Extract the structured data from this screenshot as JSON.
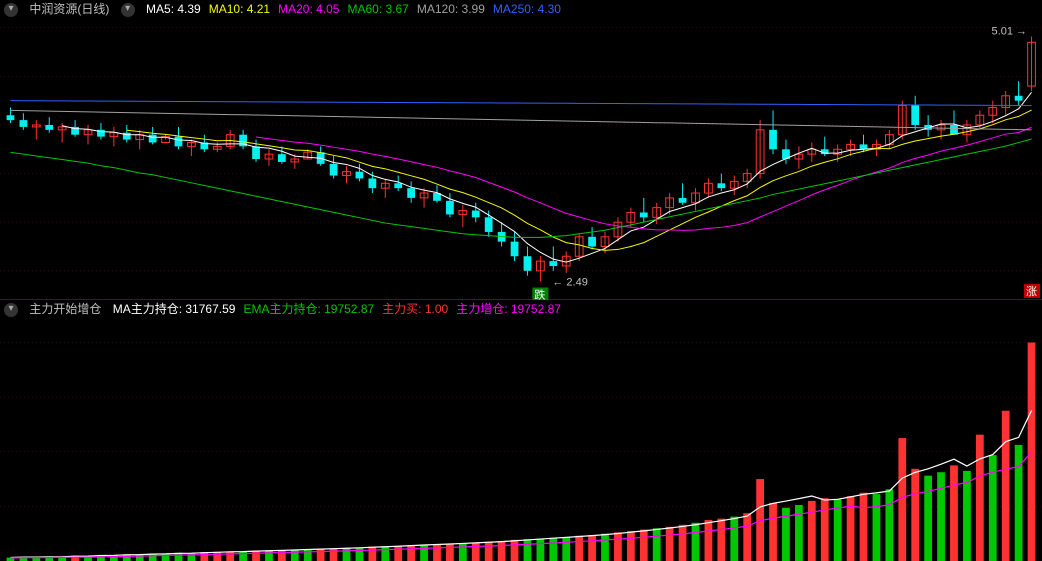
{
  "colors": {
    "background": "#000000",
    "grid": "#800000",
    "text_default": "#c0c0c0",
    "candle_up": "#ff3232",
    "candle_down": "#00f0f0",
    "ma5": "#ffffff",
    "ma10": "#f8f800",
    "ma20": "#ff00ff",
    "ma60": "#00c800",
    "ma120": "#a0a0a0",
    "ma250": "#3060ff",
    "vol_up": "#ff3232",
    "vol_down": "#00c800",
    "vol_line": "#ffffff",
    "vol_line2": "#ff00ff"
  },
  "top": {
    "title": "中润资源(日线)",
    "ma_labels": [
      {
        "label": "MA5:",
        "value": "4.39",
        "color": "#ffffff"
      },
      {
        "label": "MA10:",
        "value": "4.21",
        "color": "#f8f800"
      },
      {
        "label": "MA20:",
        "value": "4.05",
        "color": "#ff00ff"
      },
      {
        "label": "MA60:",
        "value": "3.67",
        "color": "#00c800"
      },
      {
        "label": "MA120:",
        "value": "3.99",
        "color": "#a0a0a0"
      },
      {
        "label": "MA250:",
        "value": "4.30",
        "color": "#3060ff"
      }
    ],
    "ylim": [
      2.3,
      5.2
    ],
    "grid_lines": [
      2.6,
      3.1,
      3.6,
      4.1,
      4.6,
      5.1
    ],
    "high_label": "5.01",
    "low_label": "2.49",
    "low_marker": "跌",
    "high_marker": "涨",
    "candles": [
      {
        "o": 4.2,
        "h": 4.28,
        "l": 4.12,
        "c": 4.15
      },
      {
        "o": 4.15,
        "h": 4.22,
        "l": 4.05,
        "c": 4.08
      },
      {
        "o": 4.08,
        "h": 4.15,
        "l": 3.95,
        "c": 4.1
      },
      {
        "o": 4.1,
        "h": 4.18,
        "l": 4.02,
        "c": 4.05
      },
      {
        "o": 4.05,
        "h": 4.12,
        "l": 3.92,
        "c": 4.08
      },
      {
        "o": 4.08,
        "h": 4.15,
        "l": 3.98,
        "c": 4.0
      },
      {
        "o": 4.0,
        "h": 4.1,
        "l": 3.9,
        "c": 4.05
      },
      {
        "o": 4.05,
        "h": 4.12,
        "l": 3.95,
        "c": 3.98
      },
      {
        "o": 3.98,
        "h": 4.08,
        "l": 3.88,
        "c": 4.02
      },
      {
        "o": 4.02,
        "h": 4.1,
        "l": 3.92,
        "c": 3.95
      },
      {
        "o": 3.95,
        "h": 4.05,
        "l": 3.85,
        "c": 4.0
      },
      {
        "o": 4.0,
        "h": 4.08,
        "l": 3.9,
        "c": 3.92
      },
      {
        "o": 3.92,
        "h": 4.0,
        "l": 3.95,
        "c": 3.98
      },
      {
        "o": 3.98,
        "h": 4.08,
        "l": 3.85,
        "c": 3.88
      },
      {
        "o": 3.88,
        "h": 3.95,
        "l": 3.78,
        "c": 3.92
      },
      {
        "o": 3.92,
        "h": 4.0,
        "l": 3.82,
        "c": 3.85
      },
      {
        "o": 3.85,
        "h": 3.92,
        "l": 3.82,
        "c": 3.88
      },
      {
        "o": 3.88,
        "h": 4.05,
        "l": 3.85,
        "c": 4.0
      },
      {
        "o": 4.0,
        "h": 4.05,
        "l": 3.85,
        "c": 3.88
      },
      {
        "o": 3.88,
        "h": 3.95,
        "l": 3.72,
        "c": 3.75
      },
      {
        "o": 3.75,
        "h": 3.85,
        "l": 3.68,
        "c": 3.8
      },
      {
        "o": 3.8,
        "h": 3.88,
        "l": 3.7,
        "c": 3.72
      },
      {
        "o": 3.72,
        "h": 3.8,
        "l": 3.65,
        "c": 3.75
      },
      {
        "o": 3.75,
        "h": 3.85,
        "l": 3.75,
        "c": 3.82
      },
      {
        "o": 3.82,
        "h": 3.88,
        "l": 3.68,
        "c": 3.7
      },
      {
        "o": 3.7,
        "h": 3.78,
        "l": 3.55,
        "c": 3.58
      },
      {
        "o": 3.58,
        "h": 3.68,
        "l": 3.5,
        "c": 3.62
      },
      {
        "o": 3.62,
        "h": 3.7,
        "l": 3.52,
        "c": 3.55
      },
      {
        "o": 3.55,
        "h": 3.62,
        "l": 3.4,
        "c": 3.45
      },
      {
        "o": 3.45,
        "h": 3.55,
        "l": 3.35,
        "c": 3.5
      },
      {
        "o": 3.5,
        "h": 3.58,
        "l": 3.42,
        "c": 3.45
      },
      {
        "o": 3.45,
        "h": 3.52,
        "l": 3.3,
        "c": 3.35
      },
      {
        "o": 3.35,
        "h": 3.45,
        "l": 3.25,
        "c": 3.4
      },
      {
        "o": 3.4,
        "h": 3.48,
        "l": 3.3,
        "c": 3.32
      },
      {
        "o": 3.32,
        "h": 3.4,
        "l": 3.15,
        "c": 3.18
      },
      {
        "o": 3.18,
        "h": 3.28,
        "l": 3.05,
        "c": 3.22
      },
      {
        "o": 3.22,
        "h": 3.3,
        "l": 3.1,
        "c": 3.15
      },
      {
        "o": 3.15,
        "h": 3.22,
        "l": 2.95,
        "c": 3.0
      },
      {
        "o": 3.0,
        "h": 3.1,
        "l": 2.85,
        "c": 2.9
      },
      {
        "o": 2.9,
        "h": 3.0,
        "l": 2.7,
        "c": 2.75
      },
      {
        "o": 2.75,
        "h": 2.85,
        "l": 2.55,
        "c": 2.6
      },
      {
        "o": 2.6,
        "h": 2.75,
        "l": 2.49,
        "c": 2.7
      },
      {
        "o": 2.7,
        "h": 2.85,
        "l": 2.6,
        "c": 2.65
      },
      {
        "o": 2.65,
        "h": 2.8,
        "l": 2.58,
        "c": 2.75
      },
      {
        "o": 2.75,
        "h": 2.98,
        "l": 2.7,
        "c": 2.95
      },
      {
        "o": 2.95,
        "h": 3.05,
        "l": 2.82,
        "c": 2.85
      },
      {
        "o": 2.85,
        "h": 3.0,
        "l": 2.78,
        "c": 2.95
      },
      {
        "o": 2.95,
        "h": 3.15,
        "l": 2.9,
        "c": 3.1
      },
      {
        "o": 3.1,
        "h": 3.25,
        "l": 3.05,
        "c": 3.2
      },
      {
        "o": 3.2,
        "h": 3.35,
        "l": 3.1,
        "c": 3.15
      },
      {
        "o": 3.15,
        "h": 3.3,
        "l": 3.08,
        "c": 3.25
      },
      {
        "o": 3.25,
        "h": 3.4,
        "l": 3.18,
        "c": 3.35
      },
      {
        "o": 3.35,
        "h": 3.5,
        "l": 3.28,
        "c": 3.3
      },
      {
        "o": 3.3,
        "h": 3.45,
        "l": 3.22,
        "c": 3.4
      },
      {
        "o": 3.4,
        "h": 3.55,
        "l": 3.35,
        "c": 3.5
      },
      {
        "o": 3.5,
        "h": 3.6,
        "l": 3.42,
        "c": 3.45
      },
      {
        "o": 3.45,
        "h": 3.58,
        "l": 3.38,
        "c": 3.52
      },
      {
        "o": 3.52,
        "h": 3.65,
        "l": 3.45,
        "c": 3.6
      },
      {
        "o": 3.6,
        "h": 4.15,
        "l": 3.55,
        "c": 4.05
      },
      {
        "o": 4.05,
        "h": 4.25,
        "l": 3.8,
        "c": 3.85
      },
      {
        "o": 3.85,
        "h": 3.95,
        "l": 3.7,
        "c": 3.75
      },
      {
        "o": 3.75,
        "h": 3.88,
        "l": 3.65,
        "c": 3.8
      },
      {
        "o": 3.8,
        "h": 3.92,
        "l": 3.72,
        "c": 3.85
      },
      {
        "o": 3.85,
        "h": 3.98,
        "l": 3.78,
        "c": 3.8
      },
      {
        "o": 3.8,
        "h": 3.9,
        "l": 3.72,
        "c": 3.85
      },
      {
        "o": 3.85,
        "h": 3.95,
        "l": 3.78,
        "c": 3.9
      },
      {
        "o": 3.9,
        "h": 4.0,
        "l": 3.82,
        "c": 3.85
      },
      {
        "o": 3.85,
        "h": 3.95,
        "l": 3.78,
        "c": 3.9
      },
      {
        "o": 3.9,
        "h": 4.05,
        "l": 3.85,
        "c": 4.0
      },
      {
        "o": 4.0,
        "h": 4.35,
        "l": 3.95,
        "c": 4.3
      },
      {
        "o": 4.3,
        "h": 4.4,
        "l": 4.05,
        "c": 4.1
      },
      {
        "o": 4.1,
        "h": 4.2,
        "l": 3.98,
        "c": 4.05
      },
      {
        "o": 4.05,
        "h": 4.15,
        "l": 3.95,
        "c": 4.1
      },
      {
        "o": 4.1,
        "h": 4.25,
        "l": 4.05,
        "c": 4.0
      },
      {
        "o": 4.0,
        "h": 4.15,
        "l": 3.92,
        "c": 4.1
      },
      {
        "o": 4.1,
        "h": 4.25,
        "l": 4.05,
        "c": 4.2
      },
      {
        "o": 4.2,
        "h": 4.35,
        "l": 4.12,
        "c": 4.28
      },
      {
        "o": 4.28,
        "h": 4.45,
        "l": 4.2,
        "c": 4.4
      },
      {
        "o": 4.4,
        "h": 4.55,
        "l": 4.3,
        "c": 4.35
      },
      {
        "o": 4.5,
        "h": 5.01,
        "l": 4.45,
        "c": 4.95
      }
    ]
  },
  "bottom": {
    "title": "主力开始增仓",
    "labels": [
      {
        "label": "MA主力持仓:",
        "value": "31767.59",
        "color": "#ffffff"
      },
      {
        "label": "EMA主力持仓:",
        "value": "19752.87",
        "color": "#00c800"
      },
      {
        "label": "主力买:",
        "value": "1.00",
        "color": "#ff3232"
      },
      {
        "label": "主力增仓:",
        "value": "19752.87",
        "color": "#ff00ff"
      }
    ],
    "ylim": [
      0,
      35000
    ],
    "grid_lines": [
      8000,
      16000,
      24000,
      32000
    ],
    "bars": [
      {
        "v": 500,
        "up": 0
      },
      {
        "v": 600,
        "up": 0
      },
      {
        "v": 550,
        "up": 0
      },
      {
        "v": 700,
        "up": 0
      },
      {
        "v": 650,
        "up": 0
      },
      {
        "v": 800,
        "up": 1
      },
      {
        "v": 750,
        "up": 0
      },
      {
        "v": 900,
        "up": 0
      },
      {
        "v": 850,
        "up": 0
      },
      {
        "v": 1000,
        "up": 0
      },
      {
        "v": 950,
        "up": 0
      },
      {
        "v": 1100,
        "up": 0
      },
      {
        "v": 1050,
        "up": 0
      },
      {
        "v": 1200,
        "up": 0
      },
      {
        "v": 1150,
        "up": 0
      },
      {
        "v": 1300,
        "up": 1
      },
      {
        "v": 1350,
        "up": 1
      },
      {
        "v": 1400,
        "up": 1
      },
      {
        "v": 1350,
        "up": 0
      },
      {
        "v": 1500,
        "up": 1
      },
      {
        "v": 1550,
        "up": 0
      },
      {
        "v": 1600,
        "up": 1
      },
      {
        "v": 1650,
        "up": 0
      },
      {
        "v": 1700,
        "up": 0
      },
      {
        "v": 1800,
        "up": 1
      },
      {
        "v": 1850,
        "up": 1
      },
      {
        "v": 1900,
        "up": 0
      },
      {
        "v": 1950,
        "up": 0
      },
      {
        "v": 2100,
        "up": 1
      },
      {
        "v": 2150,
        "up": 0
      },
      {
        "v": 2200,
        "up": 1
      },
      {
        "v": 2300,
        "up": 1
      },
      {
        "v": 2400,
        "up": 0
      },
      {
        "v": 2450,
        "up": 1
      },
      {
        "v": 2500,
        "up": 1
      },
      {
        "v": 2600,
        "up": 0
      },
      {
        "v": 2700,
        "up": 1
      },
      {
        "v": 2800,
        "up": 1
      },
      {
        "v": 2900,
        "up": 1
      },
      {
        "v": 3100,
        "up": 1
      },
      {
        "v": 3200,
        "up": 0
      },
      {
        "v": 3300,
        "up": 0
      },
      {
        "v": 3400,
        "up": 0
      },
      {
        "v": 3500,
        "up": 0
      },
      {
        "v": 3700,
        "up": 1
      },
      {
        "v": 3800,
        "up": 1
      },
      {
        "v": 4000,
        "up": 0
      },
      {
        "v": 4200,
        "up": 1
      },
      {
        "v": 4400,
        "up": 1
      },
      {
        "v": 4600,
        "up": 1
      },
      {
        "v": 4800,
        "up": 0
      },
      {
        "v": 5000,
        "up": 1
      },
      {
        "v": 5300,
        "up": 1
      },
      {
        "v": 5600,
        "up": 0
      },
      {
        "v": 6000,
        "up": 1
      },
      {
        "v": 6200,
        "up": 1
      },
      {
        "v": 6500,
        "up": 0
      },
      {
        "v": 7000,
        "up": 1
      },
      {
        "v": 12000,
        "up": 1
      },
      {
        "v": 8500,
        "up": 1
      },
      {
        "v": 7800,
        "up": 0
      },
      {
        "v": 8200,
        "up": 0
      },
      {
        "v": 8800,
        "up": 1
      },
      {
        "v": 9200,
        "up": 1
      },
      {
        "v": 9000,
        "up": 0
      },
      {
        "v": 9500,
        "up": 1
      },
      {
        "v": 10000,
        "up": 1
      },
      {
        "v": 9800,
        "up": 0
      },
      {
        "v": 10500,
        "up": 0
      },
      {
        "v": 18000,
        "up": 1
      },
      {
        "v": 13500,
        "up": 1
      },
      {
        "v": 12500,
        "up": 0
      },
      {
        "v": 13000,
        "up": 0
      },
      {
        "v": 14000,
        "up": 1
      },
      {
        "v": 13200,
        "up": 0
      },
      {
        "v": 18500,
        "up": 1
      },
      {
        "v": 15500,
        "up": 0
      },
      {
        "v": 22000,
        "up": 1
      },
      {
        "v": 17000,
        "up": 0
      },
      {
        "v": 32000,
        "up": 1
      }
    ]
  }
}
